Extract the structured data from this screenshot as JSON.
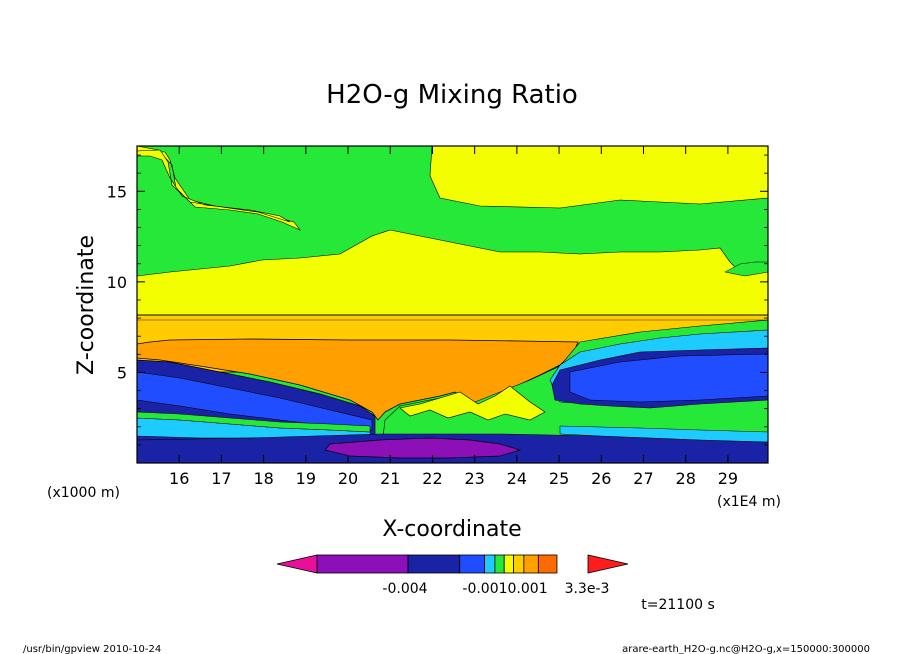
{
  "chart_data": {
    "type": "heatmap",
    "title": "H2O-g Mixing Ratio",
    "xlabel": "X-coordinate",
    "ylabel": "Z-coordinate",
    "x_unit": "(x1E4 m)",
    "y_unit": "(x1000 m)",
    "x_ticks": [
      16,
      17,
      18,
      19,
      20,
      21,
      22,
      23,
      24,
      25,
      26,
      27,
      28,
      29
    ],
    "y_ticks": [
      5,
      10,
      15
    ],
    "xlim": [
      15.0,
      29.95
    ],
    "ylim": [
      0,
      17.5
    ],
    "grid": false,
    "colorbar": {
      "labels": [
        "-0.004",
        "-0.0010.001",
        "3.3e-3"
      ],
      "colors": [
        "#e8109a",
        "#8c0fb8",
        "#1a22a6",
        "#1f4dff",
        "#1ecbff",
        "#25e838",
        "#f3ff00",
        "#ffcc00",
        "#ffa000",
        "#ff6a00",
        "#ff1c1c"
      ]
    },
    "contour_bands": [
      {
        "name": "upper-green",
        "color": "#25e838",
        "zmin": 14.5,
        "zmax": 17.5
      },
      {
        "name": "upper-yellow",
        "color": "#f3ff00",
        "zmin": 8.3,
        "zmax": 14.5
      },
      {
        "name": "light-orange",
        "color": "#ffcc00",
        "zmin": 6.8,
        "zmax": 8.3
      },
      {
        "name": "orange",
        "color": "#ffa000",
        "zmin": 2.3,
        "zmax": 6.8
      },
      {
        "name": "blue",
        "color": "#1a22a6",
        "zmin": 0.5,
        "zmax": 5.0
      },
      {
        "name": "cyan",
        "color": "#1ecbff",
        "zmin": 1.3,
        "zmax": 2.4
      },
      {
        "name": "purple",
        "color": "#8c0fb8",
        "zmin": 0.2,
        "zmax": 1.2
      }
    ]
  },
  "time_label": "t=21100 s",
  "footer_left": "/usr/bin/gpview   2010-10-24",
  "footer_right": "arare-earth_H2O-g.nc@H2O-g,x=150000:300000"
}
